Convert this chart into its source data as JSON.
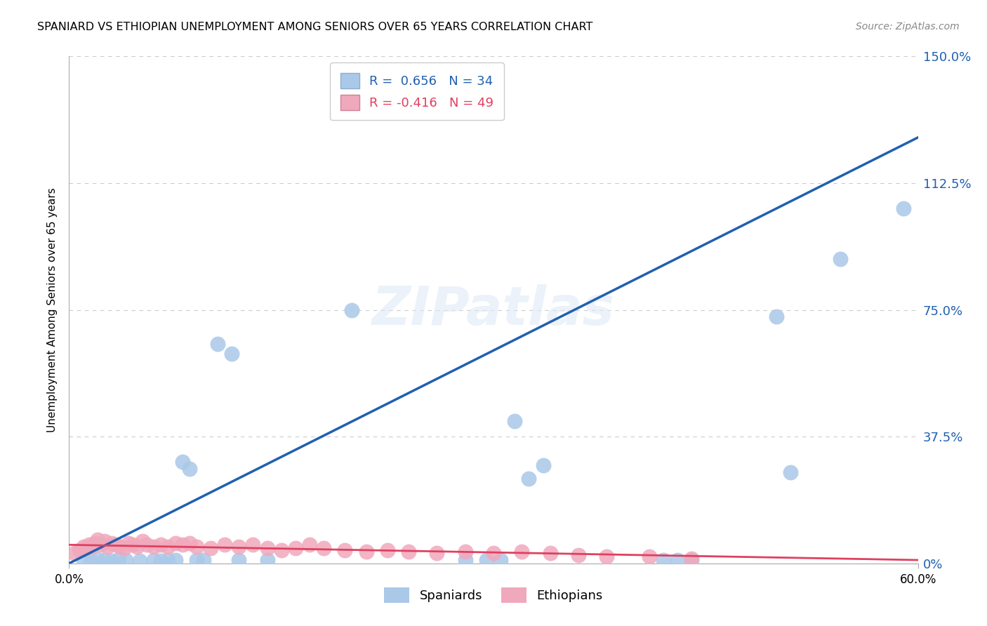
{
  "title": "SPANIARD VS ETHIOPIAN UNEMPLOYMENT AMONG SENIORS OVER 65 YEARS CORRELATION CHART",
  "source": "Source: ZipAtlas.com",
  "ylabel": "Unemployment Among Seniors over 65 years",
  "xlim": [
    0,
    0.6
  ],
  "ylim": [
    0,
    1.5
  ],
  "xticks": [
    0.0,
    0.6
  ],
  "xtick_labels": [
    "0.0%",
    "60.0%"
  ],
  "yticks_right": [
    0.0,
    0.375,
    0.75,
    1.125,
    1.5
  ],
  "ytick_labels_right": [
    "0%",
    "37.5%",
    "75.0%",
    "112.5%",
    "150.0%"
  ],
  "spaniard_color": "#aac8e8",
  "ethiopian_color": "#f0a8bc",
  "spaniard_line_color": "#2060b0",
  "ethiopian_line_color": "#e04060",
  "spaniard_R": 0.656,
  "spaniard_N": 34,
  "ethiopian_R": -0.416,
  "ethiopian_N": 49,
  "watermark": "ZIPatlas",
  "background_color": "#ffffff",
  "grid_color": "#cccccc",
  "spaniard_line_x0": 0.0,
  "spaniard_line_y0": 0.0,
  "spaniard_line_x1": 0.6,
  "spaniard_line_y1": 1.26,
  "ethiopian_line_x0": 0.0,
  "ethiopian_line_y0": 0.055,
  "ethiopian_line_x1": 0.6,
  "ethiopian_line_y1": 0.01,
  "spaniard_x": [
    0.01,
    0.015,
    0.02,
    0.025,
    0.03,
    0.035,
    0.04,
    0.05,
    0.06,
    0.065,
    0.07,
    0.075,
    0.08,
    0.085,
    0.09,
    0.095,
    0.105,
    0.115,
    0.12,
    0.14,
    0.2,
    0.28,
    0.295,
    0.305,
    0.315,
    0.325,
    0.335,
    0.42,
    0.43,
    0.44,
    0.5,
    0.51,
    0.545,
    0.59
  ],
  "spaniard_y": [
    0.01,
    0.008,
    0.012,
    0.01,
    0.008,
    0.012,
    0.01,
    0.008,
    0.01,
    0.008,
    0.01,
    0.01,
    0.3,
    0.28,
    0.01,
    0.01,
    0.65,
    0.62,
    0.01,
    0.01,
    0.75,
    0.01,
    0.01,
    0.01,
    0.42,
    0.25,
    0.29,
    0.01,
    0.01,
    0.01,
    0.73,
    0.27,
    0.9,
    1.05
  ],
  "ethiopian_x": [
    0.004,
    0.007,
    0.01,
    0.012,
    0.014,
    0.016,
    0.018,
    0.02,
    0.022,
    0.025,
    0.027,
    0.03,
    0.033,
    0.036,
    0.039,
    0.042,
    0.045,
    0.048,
    0.052,
    0.055,
    0.06,
    0.065,
    0.07,
    0.075,
    0.08,
    0.085,
    0.09,
    0.1,
    0.11,
    0.12,
    0.13,
    0.14,
    0.15,
    0.16,
    0.17,
    0.18,
    0.195,
    0.21,
    0.225,
    0.24,
    0.26,
    0.28,
    0.3,
    0.32,
    0.34,
    0.36,
    0.38,
    0.41,
    0.44
  ],
  "ethiopian_y": [
    0.03,
    0.04,
    0.05,
    0.045,
    0.055,
    0.05,
    0.06,
    0.07,
    0.055,
    0.065,
    0.05,
    0.06,
    0.055,
    0.05,
    0.045,
    0.06,
    0.055,
    0.05,
    0.065,
    0.055,
    0.05,
    0.055,
    0.05,
    0.06,
    0.055,
    0.06,
    0.05,
    0.045,
    0.055,
    0.05,
    0.055,
    0.045,
    0.04,
    0.045,
    0.055,
    0.045,
    0.04,
    0.035,
    0.04,
    0.035,
    0.03,
    0.035,
    0.03,
    0.035,
    0.03,
    0.025,
    0.02,
    0.02,
    0.015
  ]
}
